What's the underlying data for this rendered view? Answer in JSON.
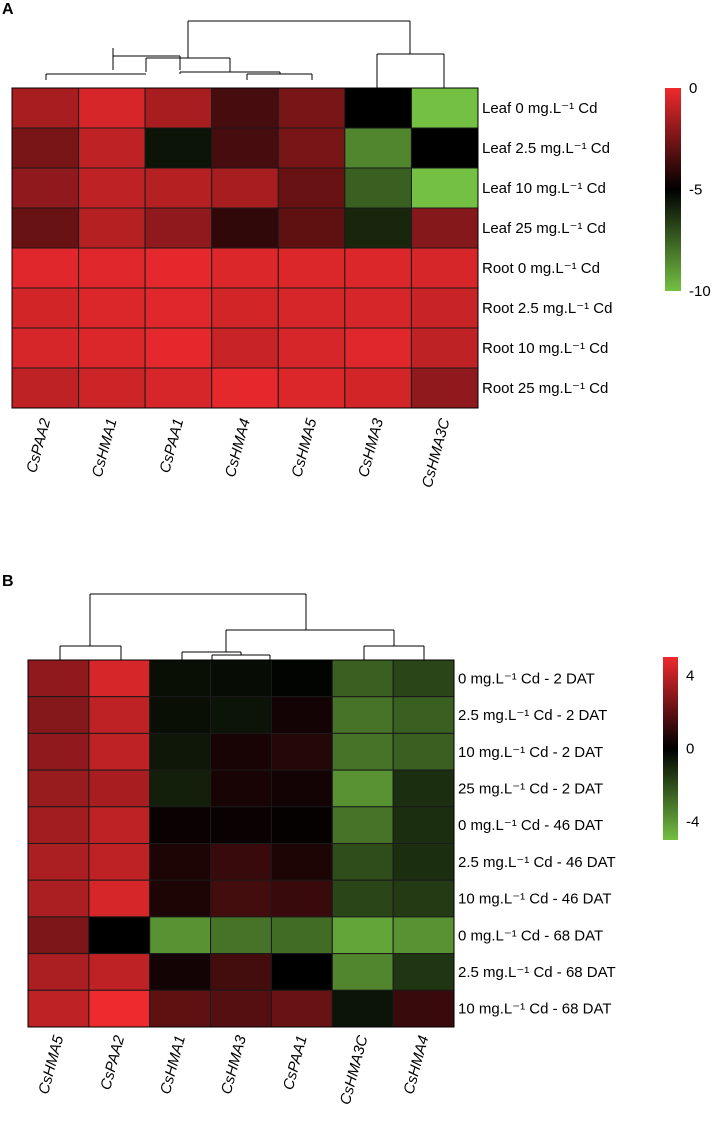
{
  "chart_data": [
    {
      "type": "heatmap",
      "panel_label": "A",
      "columns": [
        "CsPAA2",
        "CsHMA1",
        "CsPAA1",
        "CsHMA4",
        "CsHMA5",
        "CsHMA3",
        "CsHMA3C"
      ],
      "rows": [
        "Leaf 0 mg.L⁻¹ Cd",
        "Leaf 2.5 mg.L⁻¹ Cd",
        "Leaf 10 mg.L⁻¹ Cd",
        "Leaf 25 mg.L⁻¹ Cd",
        "Root 0 mg.L⁻¹ Cd",
        "Root 2.5 mg.L⁻¹ Cd",
        "Root 10 mg.L⁻¹ Cd",
        "Root 25 mg.L⁻¹ Cd"
      ],
      "values": [
        [
          -1.5,
          -0.5,
          -1.5,
          -3.5,
          -2.5,
          -5,
          -10
        ],
        [
          -2.5,
          -1,
          -5.5,
          -3.5,
          -2.5,
          -8.5,
          -5
        ],
        [
          -2,
          -1,
          -1.2,
          -1.5,
          -2.8,
          -7.5,
          -10
        ],
        [
          -2.8,
          -1.2,
          -2,
          -4,
          -3,
          -6,
          -2.2
        ],
        [
          -0.3,
          -0.3,
          -0.2,
          -0.4,
          -0.4,
          -0.4,
          -0.5
        ],
        [
          -0.6,
          -0.4,
          -0.3,
          -0.6,
          -0.5,
          -0.5,
          -0.8
        ],
        [
          -0.5,
          -0.4,
          -0.2,
          -0.8,
          -0.5,
          -0.3,
          -1
        ],
        [
          -1,
          -0.7,
          -0.5,
          -0.2,
          -0.4,
          -0.6,
          -2
        ]
      ],
      "color_scale": {
        "min": -10,
        "mid": -5,
        "max": 0,
        "low_color": "#74c042",
        "mid_color": "#000000",
        "high_color": "#ee2a2e"
      },
      "colorbar_ticks": [
        "0",
        "-5",
        "-10"
      ],
      "colorbar_tick_values": [
        0,
        -5,
        -10
      ]
    },
    {
      "type": "heatmap",
      "panel_label": "B",
      "columns": [
        "CsHMA5",
        "CsPAA2",
        "CsHMA1",
        "CsHMA3",
        "CsPAA1",
        "CsHMA3C",
        "CsHMA4"
      ],
      "rows": [
        "0 mg.L⁻¹ Cd - 2 DAT",
        "2.5 mg.L⁻¹ Cd - 2 DAT",
        "10 mg.L⁻¹ Cd - 2 DAT",
        "25 mg.L⁻¹ Cd - 2 DAT",
        "0 mg.L⁻¹ Cd - 46 DAT",
        "2.5 mg.L⁻¹ Cd - 46 DAT",
        "10 mg.L⁻¹ Cd - 46 DAT",
        "0 mg.L⁻¹ Cd - 68 DAT",
        "2.5 mg.L⁻¹ Cd - 68 DAT",
        "10 mg.L⁻¹ Cd - 68 DAT"
      ],
      "values": [
        [
          3,
          4.5,
          -0.4,
          -0.3,
          -0.1,
          -2.5,
          -1.8
        ],
        [
          2.8,
          4,
          -0.4,
          -0.5,
          0.4,
          -3,
          -2.5
        ],
        [
          3,
          4,
          -0.6,
          0.5,
          0.8,
          -3,
          -2.5
        ],
        [
          3.2,
          3.5,
          -0.8,
          0.5,
          0.4,
          -3.8,
          -1.2
        ],
        [
          3.4,
          4,
          0.2,
          0.2,
          0.1,
          -3,
          -1.2
        ],
        [
          3.6,
          4,
          0.6,
          1.2,
          0.6,
          -2,
          -1.2
        ],
        [
          3.6,
          4.5,
          0.6,
          1.4,
          1.2,
          -1.8,
          -1.5
        ],
        [
          2.6,
          0,
          -3.8,
          -3,
          -2.8,
          -4.3,
          -3.8
        ],
        [
          3.6,
          4,
          0.4,
          1.4,
          0,
          -3.5,
          -1.4
        ],
        [
          4,
          5,
          2,
          1.8,
          2.2,
          -0.5,
          1.2
        ]
      ],
      "color_scale": {
        "min": -5,
        "mid": 0,
        "max": 5,
        "low_color": "#74c042",
        "mid_color": "#000000",
        "high_color": "#ee2a2e"
      },
      "colorbar_ticks": [
        "4",
        "0",
        "-4"
      ],
      "colorbar_tick_values": [
        4,
        0,
        -4
      ]
    }
  ]
}
